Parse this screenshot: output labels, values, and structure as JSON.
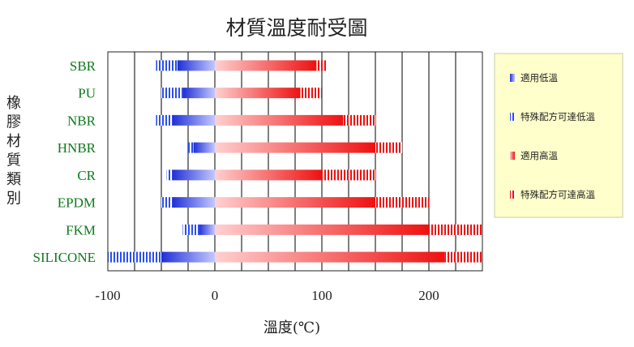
{
  "chart_data": {
    "type": "bar",
    "orientation": "horizontal",
    "title": "材質溫度耐受圖",
    "xlabel": "溫度(℃)",
    "ylabel": "橡膠材質類別",
    "xlim": [
      -100,
      250
    ],
    "x_ticks": [
      -100,
      0,
      100,
      200
    ],
    "x_tick_labels": [
      "-100",
      "0",
      "100",
      "200"
    ],
    "grid": "vertical, every 25",
    "legend_position": "right",
    "categories": [
      "SBR",
      "PU",
      "NBR",
      "HNBR",
      "CR",
      "EPDM",
      "FKM",
      "SILICONE"
    ],
    "series": [
      {
        "name": "特殊配方可達低溫",
        "key": "special_low",
        "color": "#2a4ff0",
        "style": "striped",
        "values": [
          [
            -55,
            -35
          ],
          [
            -50,
            -30
          ],
          [
            -55,
            -40
          ],
          [
            -25,
            -20
          ],
          [
            -45,
            -40
          ],
          [
            -50,
            -40
          ],
          [
            -30,
            -15
          ],
          [
            -100,
            -50
          ]
        ]
      },
      {
        "name": "適用低溫",
        "key": "low",
        "color": "#1f2fd6",
        "style": "gradient",
        "values": [
          [
            -35,
            0
          ],
          [
            -30,
            0
          ],
          [
            -40,
            0
          ],
          [
            -20,
            0
          ],
          [
            -40,
            0
          ],
          [
            -40,
            0
          ],
          [
            -15,
            0
          ],
          [
            -50,
            0
          ]
        ]
      },
      {
        "name": "適用高溫",
        "key": "high",
        "color": "#ee1111",
        "style": "gradient",
        "values": [
          [
            0,
            95
          ],
          [
            0,
            80
          ],
          [
            0,
            120
          ],
          [
            0,
            150
          ],
          [
            0,
            100
          ],
          [
            0,
            150
          ],
          [
            0,
            200
          ],
          [
            0,
            215
          ]
        ]
      },
      {
        "name": "特殊配方可達高溫",
        "key": "special_high",
        "color": "#ee1111",
        "style": "striped",
        "values": [
          [
            95,
            105
          ],
          [
            80,
            100
          ],
          [
            120,
            150
          ],
          [
            150,
            175
          ],
          [
            100,
            150
          ],
          [
            150,
            200
          ],
          [
            200,
            250
          ],
          [
            215,
            250
          ]
        ]
      }
    ],
    "legend": [
      {
        "key": "low",
        "label": "適用低溫",
        "color": "#2a4ff0",
        "style": "gradient"
      },
      {
        "key": "special_low",
        "label": "特殊配方可達低溫",
        "color": "#2a4ff0",
        "style": "striped"
      },
      {
        "key": "high",
        "label": "適用高溫",
        "color": "#ee1111",
        "style": "gradient"
      },
      {
        "key": "special_high",
        "label": "特殊配方可達高溫",
        "color": "#ee1111",
        "style": "striped"
      }
    ],
    "colors": {
      "label_green": "#0e7a1b",
      "legend_bg": "#ffffcc",
      "grid": "#000000"
    }
  }
}
